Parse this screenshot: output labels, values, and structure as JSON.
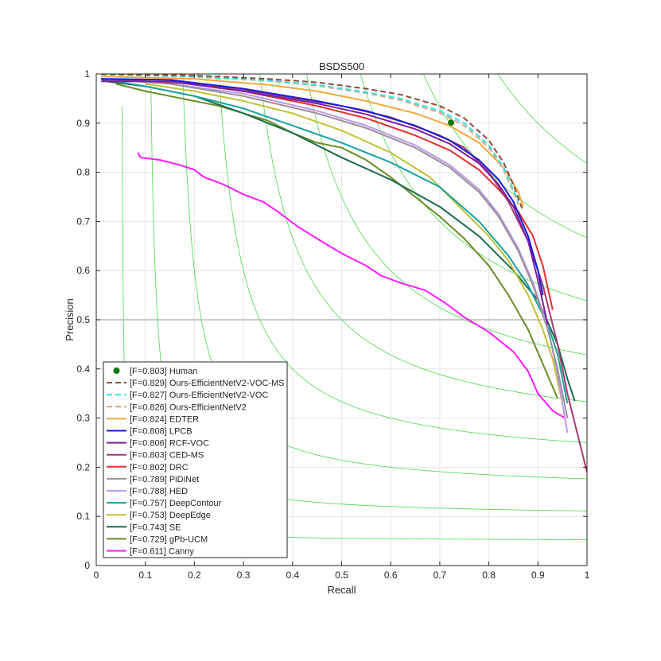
{
  "chart_data": {
    "type": "line",
    "title": "BSDS500",
    "xlabel": "Recall",
    "ylabel": "Precision",
    "xlim": [
      0,
      1
    ],
    "ylim": [
      0,
      1
    ],
    "x_ticks": [
      0,
      0.1,
      0.2,
      0.3,
      0.4,
      0.5,
      0.6,
      0.7,
      0.8,
      0.9,
      1
    ],
    "y_ticks": [
      0,
      0.1,
      0.2,
      0.3,
      0.4,
      0.5,
      0.6,
      0.7,
      0.8,
      0.9,
      1
    ],
    "x_tick_labels": [
      "0",
      "0.1",
      "0.2",
      "0.3",
      "0.4",
      "0.5",
      "0.6",
      "0.7",
      "0.8",
      "0.9",
      "1"
    ],
    "y_tick_labels": [
      "0",
      "0.1",
      "0.2",
      "0.3",
      "0.4",
      "0.5",
      "0.6",
      "0.7",
      "0.8",
      "0.9",
      "1"
    ],
    "grid": true,
    "legend_position": "bottom-left",
    "iso_f_lines": [
      0.1,
      0.2,
      0.3,
      0.4,
      0.5,
      0.6,
      0.7,
      0.8,
      0.9
    ],
    "iso_f_color": "#4cd94c",
    "reference_line": {
      "y": 0.5,
      "color": "#b8b8b8"
    },
    "human_point": {
      "label": "[F=0.803] Human",
      "recall": 0.723,
      "precision": 0.901,
      "color": "#0a7a0a"
    },
    "series": [
      {
        "name": "[F=0.829] Ours-EfficientNetV2-VOC-MS",
        "color": "#8b4c3c",
        "dash": "dashed",
        "points": [
          [
            0.01,
            1.0
          ],
          [
            0.2,
            0.997
          ],
          [
            0.35,
            0.99
          ],
          [
            0.45,
            0.983
          ],
          [
            0.55,
            0.97
          ],
          [
            0.62,
            0.958
          ],
          [
            0.7,
            0.935
          ],
          [
            0.75,
            0.91
          ],
          [
            0.8,
            0.865
          ],
          [
            0.83,
            0.82
          ],
          [
            0.85,
            0.775
          ],
          [
            0.87,
            0.72
          ]
        ]
      },
      {
        "name": "[F=0.827] Ours-EfficientNetV2-VOC",
        "color": "#33e6e6",
        "dash": "dashed",
        "points": [
          [
            0.01,
            0.999
          ],
          [
            0.2,
            0.995
          ],
          [
            0.35,
            0.987
          ],
          [
            0.45,
            0.978
          ],
          [
            0.55,
            0.963
          ],
          [
            0.62,
            0.95
          ],
          [
            0.7,
            0.925
          ],
          [
            0.75,
            0.9
          ],
          [
            0.8,
            0.855
          ],
          [
            0.83,
            0.81
          ],
          [
            0.85,
            0.765
          ],
          [
            0.86,
            0.74
          ]
        ]
      },
      {
        "name": "[F=0.826] Ours-EfficientNetV2",
        "color": "#d9a68c",
        "dash": "dashed",
        "points": [
          [
            0.01,
            0.999
          ],
          [
            0.2,
            0.994
          ],
          [
            0.35,
            0.986
          ],
          [
            0.45,
            0.976
          ],
          [
            0.55,
            0.961
          ],
          [
            0.62,
            0.947
          ],
          [
            0.7,
            0.921
          ],
          [
            0.75,
            0.895
          ],
          [
            0.8,
            0.85
          ],
          [
            0.83,
            0.805
          ],
          [
            0.85,
            0.76
          ],
          [
            0.86,
            0.735
          ]
        ]
      },
      {
        "name": "[F=0.824] EDTER",
        "color": "#f2a93b",
        "dash": "solid",
        "points": [
          [
            0.01,
            0.995
          ],
          [
            0.2,
            0.99
          ],
          [
            0.35,
            0.978
          ],
          [
            0.45,
            0.965
          ],
          [
            0.55,
            0.945
          ],
          [
            0.65,
            0.92
          ],
          [
            0.72,
            0.895
          ],
          [
            0.78,
            0.86
          ],
          [
            0.83,
            0.81
          ],
          [
            0.86,
            0.76
          ],
          [
            0.87,
            0.73
          ]
        ]
      },
      {
        "name": "[F=0.808] LPCB",
        "color": "#1a1ad9",
        "dash": "solid",
        "points": [
          [
            0.01,
            0.99
          ],
          [
            0.15,
            0.988
          ],
          [
            0.3,
            0.97
          ],
          [
            0.45,
            0.945
          ],
          [
            0.55,
            0.925
          ],
          [
            0.65,
            0.895
          ],
          [
            0.72,
            0.865
          ],
          [
            0.78,
            0.825
          ],
          [
            0.82,
            0.785
          ],
          [
            0.85,
            0.74
          ],
          [
            0.88,
            0.67
          ],
          [
            0.9,
            0.6
          ],
          [
            0.91,
            0.55
          ]
        ]
      },
      {
        "name": "[F=0.806] RCF-VOC",
        "color": "#7a1fa2",
        "dash": "solid",
        "points": [
          [
            0.01,
            0.985
          ],
          [
            0.15,
            0.985
          ],
          [
            0.3,
            0.965
          ],
          [
            0.45,
            0.94
          ],
          [
            0.55,
            0.918
          ],
          [
            0.65,
            0.888
          ],
          [
            0.72,
            0.858
          ],
          [
            0.78,
            0.818
          ],
          [
            0.82,
            0.775
          ],
          [
            0.85,
            0.73
          ],
          [
            0.88,
            0.66
          ],
          [
            0.9,
            0.58
          ],
          [
            0.92,
            0.49
          ]
        ]
      },
      {
        "name": "[F=0.803] CED-MS",
        "color": "#a33a6e",
        "dash": "solid",
        "points": [
          [
            0.01,
            0.99
          ],
          [
            0.2,
            0.98
          ],
          [
            0.35,
            0.96
          ],
          [
            0.5,
            0.935
          ],
          [
            0.6,
            0.912
          ],
          [
            0.7,
            0.875
          ],
          [
            0.75,
            0.85
          ],
          [
            0.8,
            0.8
          ],
          [
            0.84,
            0.74
          ],
          [
            0.88,
            0.66
          ],
          [
            0.91,
            0.57
          ],
          [
            0.94,
            0.45
          ],
          [
            0.96,
            0.35
          ],
          [
            0.98,
            0.27
          ],
          [
            1.0,
            0.19
          ]
        ]
      },
      {
        "name": "[F=0.802] DRC",
        "color": "#e62e2e",
        "dash": "solid",
        "points": [
          [
            0.15,
            0.985
          ],
          [
            0.3,
            0.965
          ],
          [
            0.45,
            0.935
          ],
          [
            0.55,
            0.91
          ],
          [
            0.65,
            0.875
          ],
          [
            0.72,
            0.845
          ],
          [
            0.78,
            0.805
          ],
          [
            0.82,
            0.765
          ],
          [
            0.86,
            0.72
          ],
          [
            0.89,
            0.67
          ],
          [
            0.91,
            0.61
          ],
          [
            0.93,
            0.52
          ]
        ]
      },
      {
        "name": "[F=0.789] PiDiNet",
        "color": "#9a8f9a",
        "dash": "solid",
        "points": [
          [
            0.01,
            0.99
          ],
          [
            0.15,
            0.98
          ],
          [
            0.3,
            0.955
          ],
          [
            0.45,
            0.92
          ],
          [
            0.55,
            0.89
          ],
          [
            0.65,
            0.85
          ],
          [
            0.72,
            0.81
          ],
          [
            0.78,
            0.76
          ],
          [
            0.82,
            0.71
          ],
          [
            0.86,
            0.64
          ],
          [
            0.89,
            0.57
          ],
          [
            0.92,
            0.48
          ],
          [
            0.94,
            0.4
          ],
          [
            0.96,
            0.3
          ]
        ]
      },
      {
        "name": "[F=0.788] HED",
        "color": "#bb99e6",
        "dash": "solid",
        "points": [
          [
            0.01,
            0.99
          ],
          [
            0.15,
            0.98
          ],
          [
            0.3,
            0.96
          ],
          [
            0.45,
            0.925
          ],
          [
            0.55,
            0.895
          ],
          [
            0.65,
            0.855
          ],
          [
            0.72,
            0.815
          ],
          [
            0.78,
            0.765
          ],
          [
            0.82,
            0.715
          ],
          [
            0.86,
            0.645
          ],
          [
            0.89,
            0.575
          ],
          [
            0.92,
            0.485
          ],
          [
            0.94,
            0.39
          ],
          [
            0.96,
            0.27
          ]
        ]
      },
      {
        "name": "[F=0.757] DeepContour",
        "color": "#17a3a3",
        "dash": "solid",
        "points": [
          [
            0.01,
            0.99
          ],
          [
            0.1,
            0.975
          ],
          [
            0.2,
            0.955
          ],
          [
            0.3,
            0.93
          ],
          [
            0.4,
            0.895
          ],
          [
            0.5,
            0.86
          ],
          [
            0.6,
            0.82
          ],
          [
            0.7,
            0.77
          ],
          [
            0.78,
            0.7
          ],
          [
            0.84,
            0.63
          ],
          [
            0.88,
            0.57
          ],
          [
            0.92,
            0.49
          ],
          [
            0.94,
            0.43
          ],
          [
            0.96,
            0.33
          ]
        ]
      },
      {
        "name": "[F=0.753] DeepEdge",
        "color": "#c2c236",
        "dash": "solid",
        "points": [
          [
            0.1,
            0.98
          ],
          [
            0.2,
            0.965
          ],
          [
            0.3,
            0.945
          ],
          [
            0.4,
            0.92
          ],
          [
            0.5,
            0.885
          ],
          [
            0.6,
            0.84
          ],
          [
            0.68,
            0.79
          ],
          [
            0.74,
            0.73
          ],
          [
            0.8,
            0.67
          ],
          [
            0.84,
            0.62
          ],
          [
            0.88,
            0.55
          ],
          [
            0.91,
            0.48
          ],
          [
            0.93,
            0.42
          ],
          [
            0.95,
            0.33
          ]
        ]
      },
      {
        "name": "[F=0.743] SE",
        "color": "#1a6b4d",
        "dash": "solid",
        "points": [
          [
            0.01,
            0.99
          ],
          [
            0.02,
            0.985
          ],
          [
            0.1,
            0.975
          ],
          [
            0.2,
            0.955
          ],
          [
            0.3,
            0.92
          ],
          [
            0.4,
            0.88
          ],
          [
            0.5,
            0.83
          ],
          [
            0.6,
            0.785
          ],
          [
            0.7,
            0.73
          ],
          [
            0.78,
            0.67
          ],
          [
            0.85,
            0.6
          ],
          [
            0.9,
            0.54
          ],
          [
            0.94,
            0.45
          ],
          [
            0.96,
            0.38
          ],
          [
            0.975,
            0.335
          ]
        ]
      },
      {
        "name": "[F=0.729] gPb-UCM",
        "color": "#6b8c24",
        "dash": "solid",
        "points": [
          [
            0.04,
            0.98
          ],
          [
            0.06,
            0.975
          ],
          [
            0.1,
            0.965
          ],
          [
            0.15,
            0.955
          ],
          [
            0.2,
            0.945
          ],
          [
            0.25,
            0.935
          ],
          [
            0.3,
            0.92
          ],
          [
            0.35,
            0.905
          ],
          [
            0.4,
            0.88
          ],
          [
            0.45,
            0.86
          ],
          [
            0.5,
            0.85
          ],
          [
            0.55,
            0.825
          ],
          [
            0.6,
            0.79
          ],
          [
            0.65,
            0.75
          ],
          [
            0.7,
            0.71
          ],
          [
            0.75,
            0.665
          ],
          [
            0.8,
            0.61
          ],
          [
            0.84,
            0.55
          ],
          [
            0.88,
            0.48
          ],
          [
            0.91,
            0.41
          ],
          [
            0.94,
            0.34
          ]
        ]
      },
      {
        "name": "[F=0.611] Canny",
        "color": "#ff1aff",
        "dash": "solid",
        "points": [
          [
            0.085,
            0.84
          ],
          [
            0.09,
            0.83
          ],
          [
            0.13,
            0.825
          ],
          [
            0.17,
            0.815
          ],
          [
            0.2,
            0.805
          ],
          [
            0.22,
            0.79
          ],
          [
            0.26,
            0.775
          ],
          [
            0.3,
            0.755
          ],
          [
            0.34,
            0.74
          ],
          [
            0.37,
            0.72
          ],
          [
            0.41,
            0.69
          ],
          [
            0.45,
            0.665
          ],
          [
            0.5,
            0.635
          ],
          [
            0.55,
            0.61
          ],
          [
            0.58,
            0.59
          ],
          [
            0.62,
            0.575
          ],
          [
            0.67,
            0.56
          ],
          [
            0.71,
            0.535
          ],
          [
            0.75,
            0.505
          ],
          [
            0.8,
            0.475
          ],
          [
            0.85,
            0.435
          ],
          [
            0.88,
            0.395
          ],
          [
            0.9,
            0.35
          ],
          [
            0.93,
            0.315
          ],
          [
            0.955,
            0.3
          ]
        ]
      }
    ]
  }
}
